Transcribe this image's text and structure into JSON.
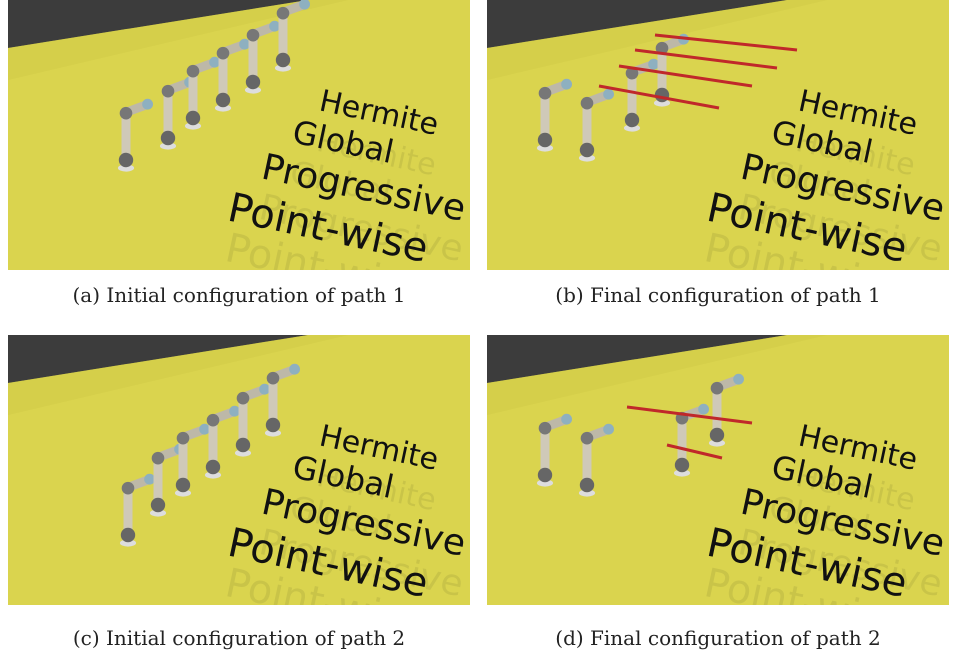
{
  "labels": [
    "Hermite",
    "Global",
    "Progressive",
    "Point-wise"
  ],
  "panels": [
    {
      "caption": "(a) Initial configuration of path 1"
    },
    {
      "caption": "(b) Final configuration of path 1"
    },
    {
      "caption": "(c) Initial configuration of path 2"
    },
    {
      "caption": "(d) Final configuration of path 2"
    }
  ]
}
